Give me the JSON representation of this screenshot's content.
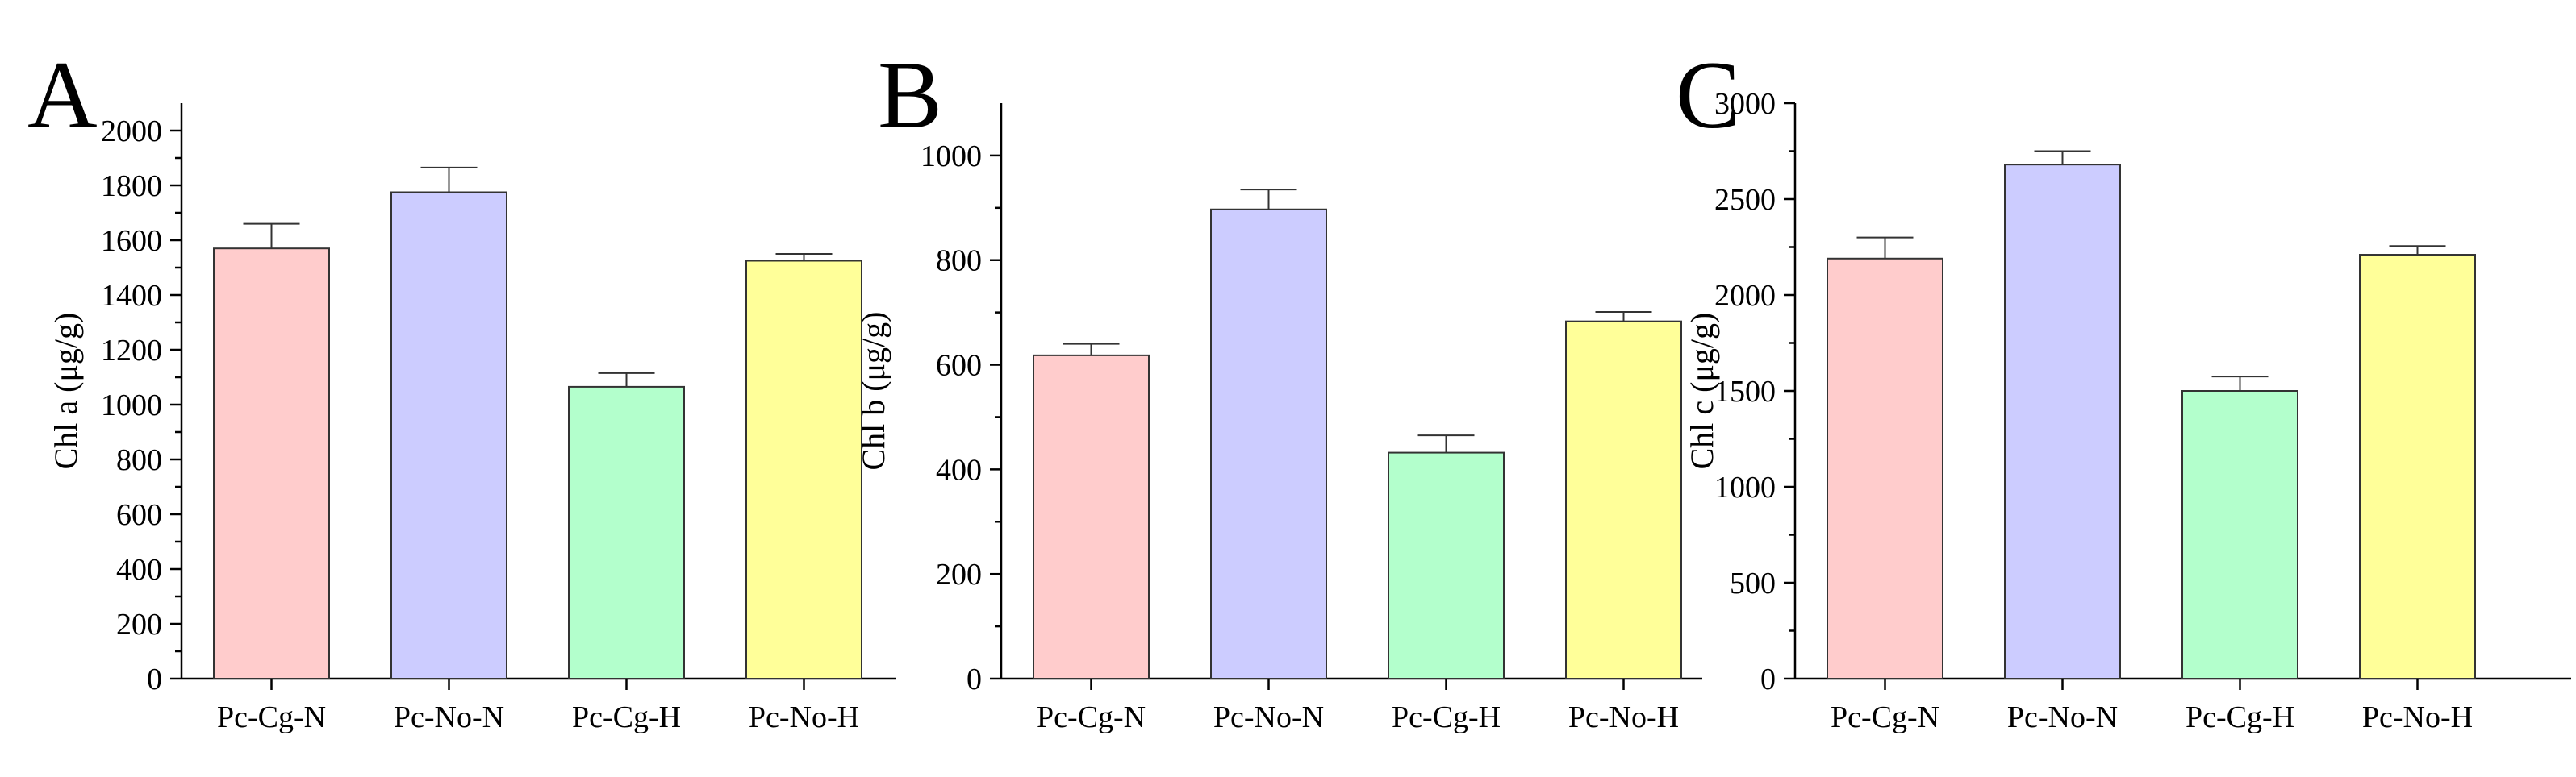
{
  "chart_data": [
    {
      "type": "bar",
      "panel_label": "A",
      "ylabel": "Chl a (μg/g)",
      "categories": [
        "Pc-Cg-N",
        "Pc-No-N",
        "Pc-Cg-H",
        "Pc-No-H"
      ],
      "values": [
        1570,
        1775,
        1065,
        1525
      ],
      "errors": [
        90,
        90,
        50,
        25
      ],
      "ylim": [
        0,
        2100
      ],
      "yticks": [
        0,
        200,
        400,
        600,
        800,
        1000,
        1200,
        1400,
        1600,
        1800,
        2000
      ],
      "colors": [
        "#ffcccc",
        "#ccccff",
        "#b3ffcc",
        "#ffff99"
      ],
      "grid": false
    },
    {
      "type": "bar",
      "panel_label": "B",
      "ylabel": "Chl b (μg/g)",
      "categories": [
        "Pc-Cg-N",
        "Pc-No-N",
        "Pc-Cg-H",
        "Pc-No-H"
      ],
      "values": [
        618,
        897,
        432,
        683
      ],
      "errors": [
        22,
        38,
        33,
        18
      ],
      "ylim": [
        0,
        1100
      ],
      "yticks": [
        0,
        200,
        400,
        600,
        800,
        1000
      ],
      "colors": [
        "#ffcccc",
        "#ccccff",
        "#b3ffcc",
        "#ffff99"
      ],
      "grid": false
    },
    {
      "type": "bar",
      "panel_label": "C",
      "ylabel": "Chl c (μg/g)",
      "categories": [
        "Pc-Cg-N",
        "Pc-No-N",
        "Pc-Cg-H",
        "Pc-No-H"
      ],
      "values": [
        2190,
        2680,
        1500,
        2210
      ],
      "errors": [
        110,
        70,
        75,
        45
      ],
      "ylim": [
        0,
        3000
      ],
      "yticks": [
        0,
        500,
        1000,
        1500,
        2000,
        2500,
        3000
      ],
      "colors": [
        "#ffcccc",
        "#ccccff",
        "#b3ffcc",
        "#ffff99"
      ],
      "grid": false
    }
  ]
}
